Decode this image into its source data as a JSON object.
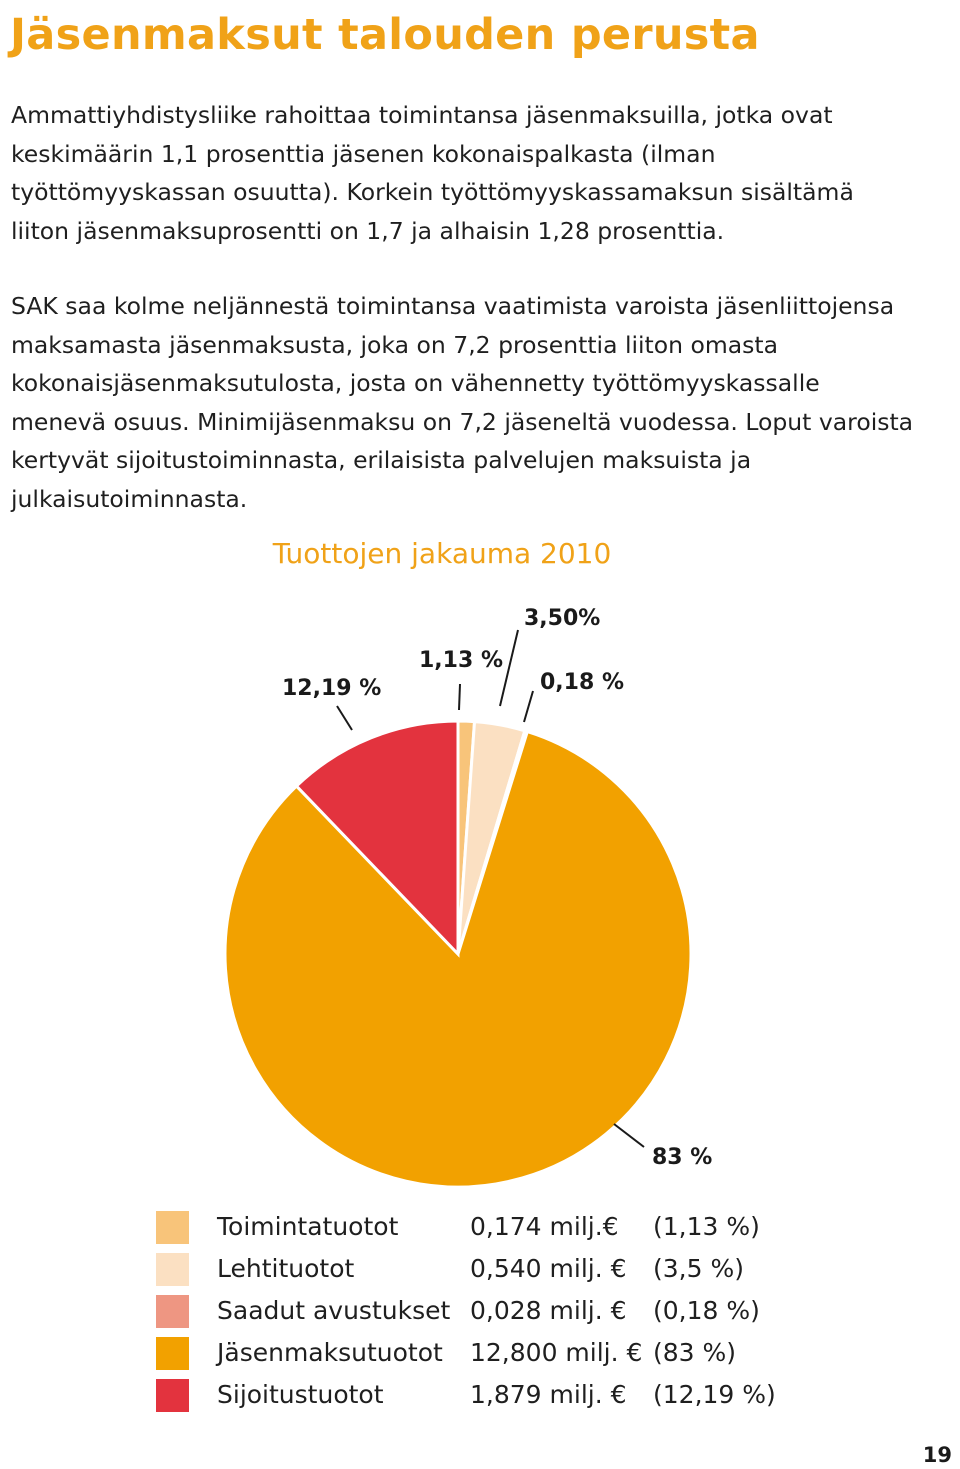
{
  "page": {
    "title": "Jäsenmaksut talouden perusta",
    "paragraph1": "Ammattiyhdistysliike rahoittaa toimintansa jäsenmaksuilla, jotka ovat keskimäärin 1,1 prosenttia jäsenen kokonaispalkasta (ilman työttömyyskassan osuutta). Korkein työttömyyskassamaksun sisältämä liiton jäsenmaksuprosentti on 1,7 ja alhaisin 1,28 prosenttia.",
    "paragraph2": "SAK saa kolme neljännestä toimintansa vaatimista varoista jäsenliittojensa maksamasta jäsenmaksusta, joka on 7,2 prosenttia liiton omasta kokonaisjäsenmaksutulosta, josta on vähennetty työttömyyskassalle menevä osuus. Minimijäsenmaksu on 7,2 jäseneltä vuodessa. Loput varoista kertyvät sijoitustoiminnasta, erilaisista palvelujen maksuista ja julkaisutoiminnasta.",
    "page_number": "19"
  },
  "chart_data": {
    "type": "pie",
    "title": "Tuottojen jakauma 2010",
    "slices": [
      {
        "name": "Toimintatuotot",
        "amount": "0,174 milj.€",
        "pct_label": "(1,13 %)",
        "value": 1.13,
        "slice_label": "1,13 %",
        "color": "#f8c47a"
      },
      {
        "name": "Lehtituotot",
        "amount": "0,540 milj. €",
        "pct_label": "(3,5 %)",
        "value": 3.5,
        "slice_label": "3,50%",
        "color": "#fbe0c2"
      },
      {
        "name": "Saadut avustukset",
        "amount": "0,028 milj. €",
        "pct_label": "(0,18 %)",
        "value": 0.18,
        "slice_label": "0,18 %",
        "color": "#ee9682"
      },
      {
        "name": "Jäsenmaksutuotot",
        "amount": "12,800 milj. €",
        "pct_label": "(83 %)",
        "value": 83,
        "slice_label": "83 %",
        "color": "#f2a100"
      },
      {
        "name": "Sijoitustuotot",
        "amount": "1,879 milj. €",
        "pct_label": "(12,19 %)",
        "value": 12.19,
        "slice_label": "12,19 %",
        "color": "#e3333e"
      }
    ]
  }
}
